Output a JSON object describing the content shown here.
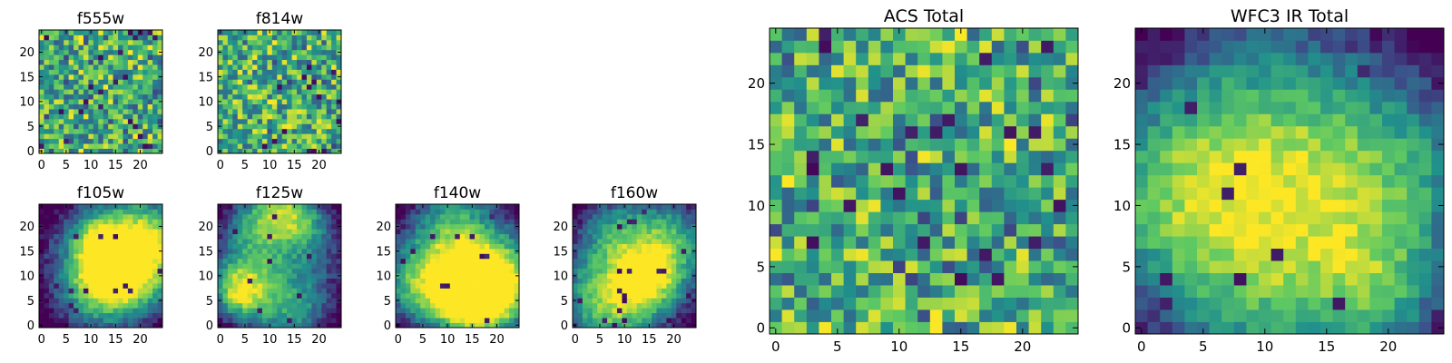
{
  "chart_data": [
    {
      "type": "heatmap",
      "title": "f555w",
      "grid_size": 25,
      "xticks": [
        0,
        5,
        10,
        15,
        20
      ],
      "yticks": [
        0,
        5,
        10,
        15,
        20
      ],
      "xlim": [
        0,
        24
      ],
      "ylim": [
        0,
        24
      ],
      "colormap": "viridis",
      "pattern": "noise"
    },
    {
      "type": "heatmap",
      "title": "f814w",
      "grid_size": 25,
      "xticks": [
        0,
        5,
        10,
        15,
        20
      ],
      "yticks": [
        0,
        5,
        10,
        15,
        20
      ],
      "xlim": [
        0,
        24
      ],
      "ylim": [
        0,
        24
      ],
      "colormap": "viridis",
      "pattern": "noise"
    },
    {
      "type": "heatmap",
      "title": "f105w",
      "grid_size": 25,
      "xticks": [
        0,
        5,
        10,
        15,
        20
      ],
      "yticks": [
        0,
        5,
        10,
        15,
        20
      ],
      "xlim": [
        0,
        24
      ],
      "ylim": [
        0,
        24
      ],
      "colormap": "viridis",
      "pattern": "blob"
    },
    {
      "type": "heatmap",
      "title": "f125w",
      "grid_size": 25,
      "xticks": [
        0,
        5,
        10,
        15,
        20
      ],
      "yticks": [
        0,
        5,
        10,
        15,
        20
      ],
      "xlim": [
        0,
        24
      ],
      "ylim": [
        0,
        24
      ],
      "colormap": "viridis",
      "pattern": "blob"
    },
    {
      "type": "heatmap",
      "title": "f140w",
      "grid_size": 25,
      "xticks": [
        0,
        5,
        10,
        15,
        20
      ],
      "yticks": [
        0,
        5,
        10,
        15,
        20
      ],
      "xlim": [
        0,
        24
      ],
      "ylim": [
        0,
        24
      ],
      "colormap": "viridis",
      "pattern": "blob"
    },
    {
      "type": "heatmap",
      "title": "f160w",
      "grid_size": 25,
      "xticks": [
        0,
        5,
        10,
        15,
        20
      ],
      "yticks": [
        0,
        5,
        10,
        15,
        20
      ],
      "xlim": [
        0,
        24
      ],
      "ylim": [
        0,
        24
      ],
      "colormap": "viridis",
      "pattern": "blob"
    },
    {
      "type": "heatmap",
      "title": "ACS Total",
      "grid_size": 25,
      "xticks": [
        0,
        5,
        10,
        15,
        20
      ],
      "yticks": [
        0,
        5,
        10,
        15,
        20
      ],
      "xlim": [
        0,
        24
      ],
      "ylim": [
        0,
        24
      ],
      "colormap": "viridis",
      "pattern": "noise"
    },
    {
      "type": "heatmap",
      "title": "WFC3 IR Total",
      "grid_size": 25,
      "xticks": [
        0,
        5,
        10,
        15,
        20
      ],
      "yticks": [
        0,
        5,
        10,
        15,
        20
      ],
      "xlim": [
        0,
        24
      ],
      "ylim": [
        0,
        24
      ],
      "colormap": "viridis",
      "pattern": "blob"
    }
  ],
  "colors": {
    "viridis_stops": [
      "#440154",
      "#3b528b",
      "#21918c",
      "#5ec962",
      "#fde725"
    ],
    "axis": "#000000",
    "background": "#ffffff"
  }
}
